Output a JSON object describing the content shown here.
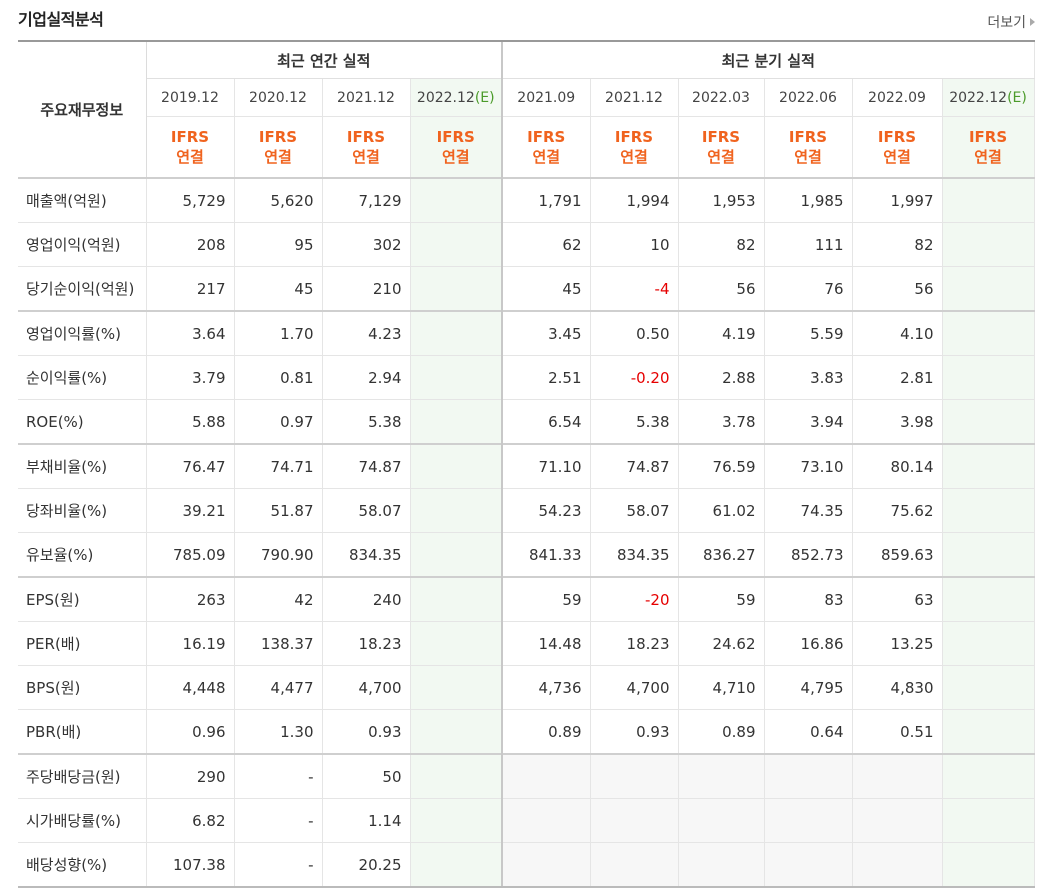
{
  "header": {
    "title": "기업실적분석",
    "more_label": "더보기"
  },
  "columns": {
    "row_label": "주요재무정보",
    "annual_group": "최근 연간 실적",
    "quarter_group": "최근 분기 실적",
    "annual": [
      "2019.12",
      "2020.12",
      "2021.12",
      "2022.12"
    ],
    "quarter": [
      "2021.09",
      "2021.12",
      "2022.03",
      "2022.06",
      "2022.09",
      "2022.12"
    ],
    "estimate_mark": "(E)",
    "ifrs_line1": "IFRS",
    "ifrs_line2": "연결"
  },
  "rows": [
    {
      "label": "매출액(억원)",
      "annual": [
        "5,729",
        "5,620",
        "7,129",
        ""
      ],
      "quarter": [
        "1,791",
        "1,994",
        "1,953",
        "1,985",
        "1,997",
        ""
      ]
    },
    {
      "label": "영업이익(억원)",
      "annual": [
        "208",
        "95",
        "302",
        ""
      ],
      "quarter": [
        "62",
        "10",
        "82",
        "111",
        "82",
        ""
      ]
    },
    {
      "label": "당기순이익(억원)",
      "annual": [
        "217",
        "45",
        "210",
        ""
      ],
      "quarter": [
        "45",
        "-4",
        "56",
        "76",
        "56",
        ""
      ]
    },
    {
      "label": "영업이익률(%)",
      "annual": [
        "3.64",
        "1.70",
        "4.23",
        ""
      ],
      "quarter": [
        "3.45",
        "0.50",
        "4.19",
        "5.59",
        "4.10",
        ""
      ]
    },
    {
      "label": "순이익률(%)",
      "annual": [
        "3.79",
        "0.81",
        "2.94",
        ""
      ],
      "quarter": [
        "2.51",
        "-0.20",
        "2.88",
        "3.83",
        "2.81",
        ""
      ]
    },
    {
      "label": "ROE(%)",
      "annual": [
        "5.88",
        "0.97",
        "5.38",
        ""
      ],
      "quarter": [
        "6.54",
        "5.38",
        "3.78",
        "3.94",
        "3.98",
        ""
      ]
    },
    {
      "label": "부채비율(%)",
      "annual": [
        "76.47",
        "74.71",
        "74.87",
        ""
      ],
      "quarter": [
        "71.10",
        "74.87",
        "76.59",
        "73.10",
        "80.14",
        ""
      ]
    },
    {
      "label": "당좌비율(%)",
      "annual": [
        "39.21",
        "51.87",
        "58.07",
        ""
      ],
      "quarter": [
        "54.23",
        "58.07",
        "61.02",
        "74.35",
        "75.62",
        ""
      ]
    },
    {
      "label": "유보율(%)",
      "annual": [
        "785.09",
        "790.90",
        "834.35",
        ""
      ],
      "quarter": [
        "841.33",
        "834.35",
        "836.27",
        "852.73",
        "859.63",
        ""
      ]
    },
    {
      "label": "EPS(원)",
      "annual": [
        "263",
        "42",
        "240",
        ""
      ],
      "quarter": [
        "59",
        "-20",
        "59",
        "83",
        "63",
        ""
      ]
    },
    {
      "label": "PER(배)",
      "annual": [
        "16.19",
        "138.37",
        "18.23",
        ""
      ],
      "quarter": [
        "14.48",
        "18.23",
        "24.62",
        "16.86",
        "13.25",
        ""
      ]
    },
    {
      "label": "BPS(원)",
      "annual": [
        "4,448",
        "4,477",
        "4,700",
        ""
      ],
      "quarter": [
        "4,736",
        "4,700",
        "4,710",
        "4,795",
        "4,830",
        ""
      ]
    },
    {
      "label": "PBR(배)",
      "annual": [
        "0.96",
        "1.30",
        "0.93",
        ""
      ],
      "quarter": [
        "0.89",
        "0.93",
        "0.89",
        "0.64",
        "0.51",
        ""
      ]
    },
    {
      "label": "주당배당금(원)",
      "annual": [
        "290",
        "-",
        "50",
        ""
      ],
      "quarter": [
        "",
        "",
        "",
        "",
        "",
        ""
      ]
    },
    {
      "label": "시가배당률(%)",
      "annual": [
        "6.82",
        "-",
        "1.14",
        ""
      ],
      "quarter": [
        "",
        "",
        "",
        "",
        "",
        ""
      ]
    },
    {
      "label": "배당성향(%)",
      "annual": [
        "107.38",
        "-",
        "20.25",
        ""
      ],
      "quarter": [
        "",
        "",
        "",
        "",
        "",
        ""
      ]
    }
  ],
  "colors": {
    "ifrs": "#f0631e",
    "negative": "#e60000",
    "estimate_bg": "#f2f9f2",
    "estimate_mark": "#4b9b2a"
  }
}
